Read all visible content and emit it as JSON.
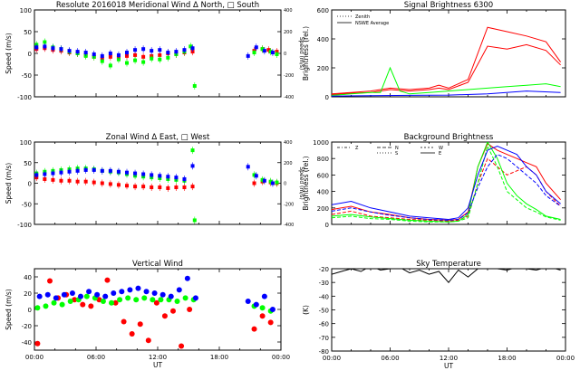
{
  "chart_data": [
    {
      "type": "scatter",
      "title": "Resolute  2016018    Meridional Wind   Δ North, □ South",
      "xlabel": "",
      "ylabel": "Speed (m/s)",
      "ylabel_right": "Speed (m/s)",
      "ylim": [
        -100,
        100
      ],
      "yticks": [
        -100,
        -50,
        0,
        50,
        100
      ],
      "ylim_right": [
        -400,
        400
      ],
      "yticks_right": [
        -400,
        -200,
        0,
        200,
        400
      ],
      "x_range_hours": [
        0,
        24
      ],
      "series": [
        {
          "color": "#ff0000",
          "x": [
            0.2,
            1.0,
            1.8,
            2.6,
            3.4,
            4.2,
            5.0,
            5.8,
            6.6,
            7.4,
            8.2,
            9.0,
            9.8,
            10.6,
            11.4,
            12.2,
            13.0,
            13.8,
            14.6,
            15.4,
            21.4,
            22.2,
            22.8,
            23.6
          ],
          "y": [
            10,
            12,
            8,
            6,
            2,
            0,
            -4,
            -8,
            -12,
            -8,
            -10,
            -6,
            -4,
            -8,
            -6,
            -4,
            0,
            -2,
            2,
            4,
            6,
            10,
            8,
            4
          ]
        },
        {
          "color": "#00ff00",
          "x": [
            0.2,
            1.0,
            1.8,
            2.6,
            3.4,
            4.2,
            5.0,
            5.8,
            6.6,
            7.4,
            8.2,
            9.0,
            9.8,
            10.6,
            11.4,
            12.2,
            13.0,
            13.8,
            14.6,
            15.2,
            15.6,
            21.4,
            22.2,
            23.0,
            23.6
          ],
          "y": [
            20,
            26,
            14,
            10,
            4,
            0,
            -6,
            -8,
            -18,
            -28,
            -14,
            -22,
            -16,
            -20,
            -12,
            -14,
            -10,
            -2,
            4,
            16,
            -75,
            2,
            10,
            4,
            -2
          ]
        },
        {
          "color": "#0000ff",
          "x": [
            0.2,
            1.0,
            1.8,
            2.6,
            3.4,
            4.2,
            5.0,
            5.8,
            6.6,
            7.4,
            8.2,
            9.0,
            9.8,
            10.6,
            11.4,
            12.2,
            13.0,
            13.8,
            14.6,
            15.4,
            20.8,
            21.6,
            22.4,
            23.2
          ],
          "y": [
            14,
            16,
            12,
            10,
            6,
            4,
            2,
            -2,
            -6,
            0,
            -4,
            2,
            8,
            10,
            6,
            8,
            2,
            4,
            8,
            12,
            -6,
            14,
            6,
            2
          ]
        }
      ]
    },
    {
      "type": "line",
      "title": "Signal Brightness        6300",
      "xlabel": "",
      "ylabel": "Brightness (rel.)",
      "ylim": [
        0,
        600
      ],
      "yticks": [
        0,
        200,
        400,
        600
      ],
      "x_range_hours": [
        0,
        24
      ],
      "legend": [
        "Zenith",
        "NSWE Average"
      ],
      "series": [
        {
          "color": "#ff0000",
          "x": [
            0,
            2,
            4,
            6,
            8,
            10,
            11,
            12,
            14,
            16,
            18,
            20,
            22,
            23.5
          ],
          "y": [
            20,
            30,
            40,
            60,
            50,
            60,
            80,
            60,
            120,
            480,
            450,
            420,
            380,
            240
          ]
        },
        {
          "color": "#ff0000",
          "x": [
            0,
            2,
            4,
            6,
            8,
            10,
            11,
            12,
            14,
            16,
            18,
            20,
            22,
            23.5
          ],
          "y": [
            15,
            25,
            30,
            50,
            40,
            50,
            60,
            50,
            100,
            350,
            330,
            360,
            320,
            220
          ]
        },
        {
          "color": "#00ff00",
          "x": [
            0,
            2,
            4,
            5,
            6,
            7,
            8,
            10,
            12,
            14,
            16,
            18,
            20,
            22,
            23.5
          ],
          "y": [
            10,
            20,
            30,
            30,
            200,
            40,
            20,
            30,
            40,
            50,
            60,
            70,
            80,
            90,
            70
          ]
        },
        {
          "color": "#0000ff",
          "x": [
            0,
            4,
            8,
            12,
            16,
            20,
            23.5
          ],
          "y": [
            5,
            8,
            10,
            12,
            20,
            40,
            30
          ]
        }
      ]
    },
    {
      "type": "scatter",
      "title": "Zonal Wind     Δ East, □ West",
      "xlabel": "",
      "ylabel": "Speed (m/s)",
      "ylabel_right": "Speed (m/s)",
      "ylim": [
        -100,
        100
      ],
      "yticks": [
        -100,
        -50,
        0,
        50,
        100
      ],
      "ylim_right": [
        -400,
        400
      ],
      "yticks_right": [
        -400,
        -200,
        0,
        200,
        400
      ],
      "x_range_hours": [
        0,
        24
      ],
      "series": [
        {
          "color": "#ff0000",
          "x": [
            0.2,
            1.0,
            1.8,
            2.6,
            3.4,
            4.2,
            5.0,
            5.8,
            6.6,
            7.4,
            8.2,
            9.0,
            9.8,
            10.6,
            11.4,
            12.2,
            13.0,
            13.8,
            14.6,
            15.4,
            21.4,
            22.2,
            23.0,
            23.6
          ],
          "y": [
            14,
            10,
            8,
            6,
            6,
            4,
            4,
            2,
            0,
            -2,
            -4,
            -6,
            -8,
            -8,
            -10,
            -10,
            -12,
            -10,
            -10,
            -8,
            0,
            4,
            2,
            0
          ]
        },
        {
          "color": "#00ff00",
          "x": [
            0.2,
            1.0,
            1.8,
            2.6,
            3.4,
            4.2,
            5.0,
            5.8,
            6.6,
            7.4,
            8.2,
            9.0,
            9.8,
            10.6,
            11.4,
            12.2,
            13.0,
            13.8,
            14.6,
            15.4,
            15.6,
            21.4,
            22.2,
            23.0,
            23.6
          ],
          "y": [
            24,
            28,
            30,
            32,
            34,
            36,
            36,
            34,
            30,
            28,
            26,
            22,
            18,
            16,
            14,
            12,
            10,
            8,
            6,
            80,
            -90,
            20,
            8,
            4,
            2
          ]
        },
        {
          "color": "#0000ff",
          "x": [
            0.2,
            1.0,
            1.8,
            2.6,
            3.4,
            4.2,
            5.0,
            5.8,
            6.6,
            7.4,
            8.2,
            9.0,
            9.8,
            10.6,
            11.4,
            12.2,
            13.0,
            13.8,
            14.6,
            15.4,
            20.8,
            21.6,
            22.4,
            23.2
          ],
          "y": [
            20,
            22,
            24,
            26,
            28,
            30,
            32,
            32,
            30,
            30,
            28,
            26,
            24,
            22,
            20,
            18,
            16,
            14,
            10,
            42,
            40,
            18,
            6,
            0
          ]
        }
      ]
    },
    {
      "type": "line",
      "title": "Background Brightness",
      "xlabel": "",
      "ylabel": "Brightness (rel.)",
      "ylim": [
        0,
        1000
      ],
      "yticks": [
        0,
        200,
        400,
        600,
        800,
        1000
      ],
      "x_range_hours": [
        0,
        24
      ],
      "legend": [
        "Z",
        "N",
        "S",
        "W",
        "E"
      ],
      "series": [
        {
          "color": "#ff0000",
          "x": [
            0,
            2,
            4,
            6,
            8,
            10,
            12,
            13,
            14,
            15,
            16,
            17,
            18,
            19,
            20,
            21,
            22,
            23.5
          ],
          "y": [
            180,
            220,
            150,
            120,
            80,
            60,
            50,
            60,
            150,
            700,
            980,
            900,
            850,
            800,
            750,
            700,
            500,
            300
          ]
        },
        {
          "color": "#ff0000",
          "x": [
            0,
            2,
            4,
            6,
            8,
            10,
            12,
            13,
            14,
            15,
            16,
            17,
            18,
            19,
            20,
            21,
            22,
            23.5
          ],
          "y": [
            120,
            160,
            100,
            80,
            60,
            50,
            40,
            50,
            100,
            500,
            800,
            700,
            600,
            650,
            700,
            600,
            400,
            220
          ]
        },
        {
          "color": "#00ff00",
          "x": [
            0,
            2,
            4,
            6,
            8,
            10,
            12,
            13,
            14,
            15,
            16,
            17,
            18,
            19,
            20,
            21,
            22,
            23.5
          ],
          "y": [
            100,
            120,
            90,
            70,
            50,
            40,
            30,
            40,
            120,
            700,
            1000,
            800,
            500,
            350,
            250,
            180,
            100,
            60
          ]
        },
        {
          "color": "#00ff00",
          "x": [
            0,
            2,
            4,
            6,
            8,
            10,
            12,
            13,
            14,
            15,
            16,
            17,
            18,
            19,
            20,
            21,
            22,
            23.5
          ],
          "y": [
            80,
            100,
            70,
            60,
            40,
            30,
            30,
            40,
            80,
            500,
            950,
            700,
            400,
            300,
            200,
            150,
            90,
            50
          ]
        },
        {
          "color": "#0000ff",
          "x": [
            0,
            2,
            4,
            6,
            8,
            10,
            12,
            13,
            14,
            15,
            16,
            17,
            18,
            19,
            20,
            21,
            22,
            23.5
          ],
          "y": [
            240,
            280,
            200,
            150,
            100,
            80,
            60,
            80,
            200,
            600,
            900,
            950,
            900,
            850,
            700,
            600,
            400,
            250
          ]
        },
        {
          "color": "#0000ff",
          "x": [
            0,
            2,
            4,
            6,
            8,
            10,
            12,
            13,
            14,
            15,
            16,
            17,
            18,
            19,
            20,
            21,
            22,
            23.5
          ],
          "y": [
            160,
            200,
            150,
            110,
            80,
            60,
            50,
            60,
            140,
            450,
            700,
            850,
            800,
            700,
            600,
            500,
            350,
            220
          ]
        }
      ]
    },
    {
      "type": "scatter",
      "title": "Vertical Wind",
      "xlabel": "UT",
      "ylabel": "Speed (m/s)",
      "ylim": [
        -50,
        50
      ],
      "yticks": [
        -40,
        -20,
        0,
        20,
        40
      ],
      "x_range_hours": [
        0,
        24
      ],
      "xticks": [
        "00:00",
        "06:00",
        "12:00",
        "18:00",
        "00:00"
      ],
      "series": [
        {
          "color": "#ff0000",
          "x": [
            0.3,
            1.5,
            2.3,
            3.1,
            3.9,
            4.7,
            5.5,
            6.3,
            7.1,
            7.9,
            8.7,
            9.5,
            10.3,
            11.1,
            11.9,
            12.7,
            13.5,
            14.3,
            15.1,
            21.4,
            22.2,
            23.0
          ],
          "y": [
            -42,
            35,
            14,
            18,
            12,
            6,
            4,
            12,
            36,
            8,
            -15,
            -30,
            -18,
            -38,
            8,
            -8,
            -2,
            -45,
            0,
            -24,
            -8,
            -16
          ]
        },
        {
          "color": "#00ff00",
          "x": [
            0.3,
            1.1,
            1.9,
            2.7,
            3.5,
            4.3,
            5.1,
            5.9,
            6.7,
            7.5,
            8.3,
            9.1,
            9.9,
            10.7,
            11.5,
            12.3,
            13.1,
            13.9,
            14.7,
            15.5,
            21.4,
            22.2,
            23.0
          ],
          "y": [
            2,
            4,
            8,
            6,
            10,
            12,
            16,
            14,
            10,
            8,
            12,
            14,
            12,
            14,
            12,
            12,
            12,
            10,
            14,
            12,
            4,
            2,
            -2
          ]
        },
        {
          "color": "#0000ff",
          "x": [
            0.5,
            1.3,
            2.1,
            2.9,
            3.7,
            4.5,
            5.3,
            6.1,
            6.9,
            7.7,
            8.5,
            9.3,
            10.1,
            10.9,
            11.7,
            12.5,
            13.3,
            14.1,
            14.9,
            15.7,
            20.8,
            21.6,
            22.4,
            23.2
          ],
          "y": [
            16,
            18,
            14,
            18,
            20,
            16,
            22,
            18,
            16,
            20,
            22,
            24,
            26,
            22,
            20,
            18,
            16,
            24,
            38,
            14,
            10,
            6,
            16,
            0
          ]
        }
      ]
    },
    {
      "type": "line",
      "title": "Sky Temperature",
      "xlabel": "UT",
      "ylabel": "(K)",
      "ylim": [
        -80,
        -20
      ],
      "yticks": [
        -80,
        -70,
        -60,
        -50,
        -40,
        -30,
        -20
      ],
      "x_range_hours": [
        0,
        24
      ],
      "xticks": [
        "00:00",
        "06:00",
        "12:00",
        "18:00",
        "00:00"
      ],
      "series": [
        {
          "color": "#000000",
          "x": [
            0,
            1,
            2,
            3,
            4,
            5,
            6,
            7,
            8,
            9,
            10,
            11,
            12,
            13,
            14,
            15,
            16,
            17,
            18,
            19,
            20,
            21,
            22,
            23,
            23.5
          ],
          "y": [
            -24,
            -22,
            -20,
            -22,
            -18,
            -21,
            -20,
            -19,
            -23,
            -21,
            -24,
            -22,
            -30,
            -21,
            -26,
            -20,
            -19,
            -20,
            -21,
            -19,
            -20,
            -21,
            -19,
            -20,
            -21
          ]
        }
      ]
    }
  ]
}
